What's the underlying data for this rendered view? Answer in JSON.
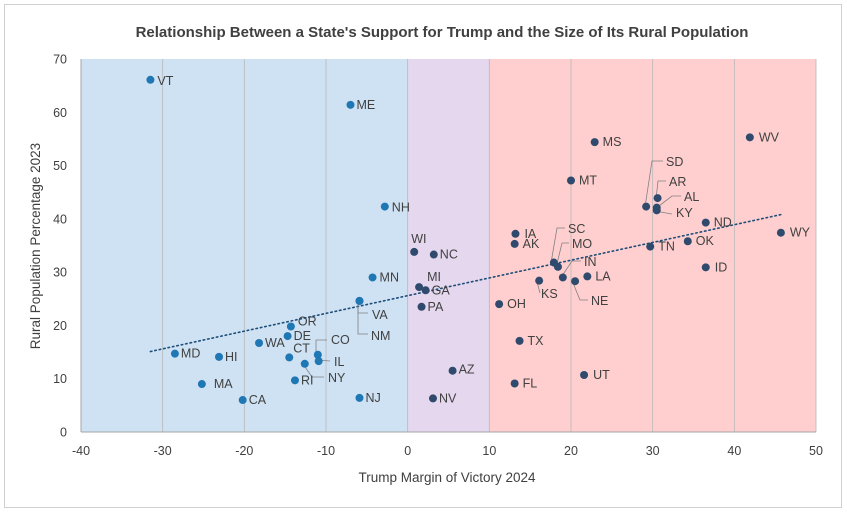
{
  "chart_data": {
    "type": "scatter",
    "title": "Relationship Between a State's Support for Trump and the Size of Its Rural Population",
    "xlabel": "Trump Margin of Victory 2024",
    "ylabel": "Rural Population Percentage 2023",
    "xlim": [
      -40,
      50
    ],
    "ylim": [
      0,
      70
    ],
    "xticks": [
      -40,
      -30,
      -20,
      -10,
      0,
      10,
      20,
      30,
      40,
      50
    ],
    "yticks": [
      0,
      10,
      20,
      30,
      40,
      50,
      60,
      70
    ],
    "grid": "vertical",
    "legend": "none",
    "background_bands": [
      {
        "x_from": -40,
        "x_to": 0,
        "color": "#cfe2f3"
      },
      {
        "x_from": 0,
        "x_to": 10,
        "color": "#e4d7ee"
      },
      {
        "x_from": 10,
        "x_to": 50,
        "color": "#ffcfcf"
      }
    ],
    "trendline": {
      "style": "dotted",
      "color": "#1f4e79",
      "x_from": -31.5,
      "x_to": 45.7,
      "y_from": 15.1,
      "y_to": 40.8
    },
    "point_color_left": "#1f77b4",
    "point_color_right": "#2f4a6d",
    "points": [
      {
        "label": "VT",
        "x": -31.5,
        "y": 66.1
      },
      {
        "label": "ME",
        "x": -7.0,
        "y": 61.4
      },
      {
        "label": "NH",
        "x": -2.8,
        "y": 42.3
      },
      {
        "label": "WI",
        "x": 0.8,
        "y": 33.8
      },
      {
        "label": "NC",
        "x": 3.2,
        "y": 33.3
      },
      {
        "label": "MN",
        "x": -4.3,
        "y": 29.0
      },
      {
        "label": "MI",
        "x": 1.4,
        "y": 27.2
      },
      {
        "label": "GA",
        "x": 2.2,
        "y": 26.6
      },
      {
        "label": "PA",
        "x": 1.7,
        "y": 23.5
      },
      {
        "label": "VA",
        "x": -5.9,
        "y": 24.6
      },
      {
        "label": "NM",
        "x": -5.9,
        "y": 24.6
      },
      {
        "label": "OR",
        "x": -14.3,
        "y": 19.8
      },
      {
        "label": "DE",
        "x": -14.7,
        "y": 18.0
      },
      {
        "label": "WA",
        "x": -18.2,
        "y": 16.7
      },
      {
        "label": "CT",
        "x": -14.5,
        "y": 14.0
      },
      {
        "label": "CO",
        "x": -11.0,
        "y": 14.5
      },
      {
        "label": "IL",
        "x": -10.9,
        "y": 13.3
      },
      {
        "label": "NY",
        "x": -12.6,
        "y": 12.8
      },
      {
        "label": "RI",
        "x": -13.8,
        "y": 9.7
      },
      {
        "label": "MD",
        "x": -28.5,
        "y": 14.7
      },
      {
        "label": "HI",
        "x": -23.1,
        "y": 14.1
      },
      {
        "label": "MA",
        "x": -25.2,
        "y": 9.0
      },
      {
        "label": "CA",
        "x": -20.2,
        "y": 6.0
      },
      {
        "label": "NJ",
        "x": -5.9,
        "y": 6.4
      },
      {
        "label": "NV",
        "x": 3.1,
        "y": 6.3
      },
      {
        "label": "AZ",
        "x": 5.5,
        "y": 11.5
      },
      {
        "label": "FL",
        "x": 13.1,
        "y": 9.1
      },
      {
        "label": "UT",
        "x": 21.6,
        "y": 10.7
      },
      {
        "label": "TX",
        "x": 13.7,
        "y": 17.1
      },
      {
        "label": "OH",
        "x": 11.2,
        "y": 24.0
      },
      {
        "label": "IA",
        "x": 13.2,
        "y": 37.2
      },
      {
        "label": "AK",
        "x": 13.1,
        "y": 35.3
      },
      {
        "label": "SC",
        "x": 17.9,
        "y": 31.8
      },
      {
        "label": "MO",
        "x": 18.4,
        "y": 31.0
      },
      {
        "label": "IN",
        "x": 19.0,
        "y": 29.0
      },
      {
        "label": "KS",
        "x": 16.1,
        "y": 28.4
      },
      {
        "label": "NE",
        "x": 20.5,
        "y": 28.3
      },
      {
        "label": "LA",
        "x": 22.0,
        "y": 29.2
      },
      {
        "label": "MT",
        "x": 20.0,
        "y": 47.2
      },
      {
        "label": "MS",
        "x": 22.9,
        "y": 54.4
      },
      {
        "label": "SD",
        "x": 29.2,
        "y": 42.3
      },
      {
        "label": "AR",
        "x": 30.6,
        "y": 43.9
      },
      {
        "label": "AL",
        "x": 30.5,
        "y": 42.1
      },
      {
        "label": "KY",
        "x": 30.5,
        "y": 41.6
      },
      {
        "label": "TN",
        "x": 29.7,
        "y": 34.8
      },
      {
        "label": "OK",
        "x": 34.3,
        "y": 35.8
      },
      {
        "label": "ND",
        "x": 36.5,
        "y": 39.3
      },
      {
        "label": "ID",
        "x": 36.5,
        "y": 30.9
      },
      {
        "label": "WV",
        "x": 41.9,
        "y": 55.3
      },
      {
        "label": "WY",
        "x": 45.7,
        "y": 37.4
      }
    ]
  }
}
